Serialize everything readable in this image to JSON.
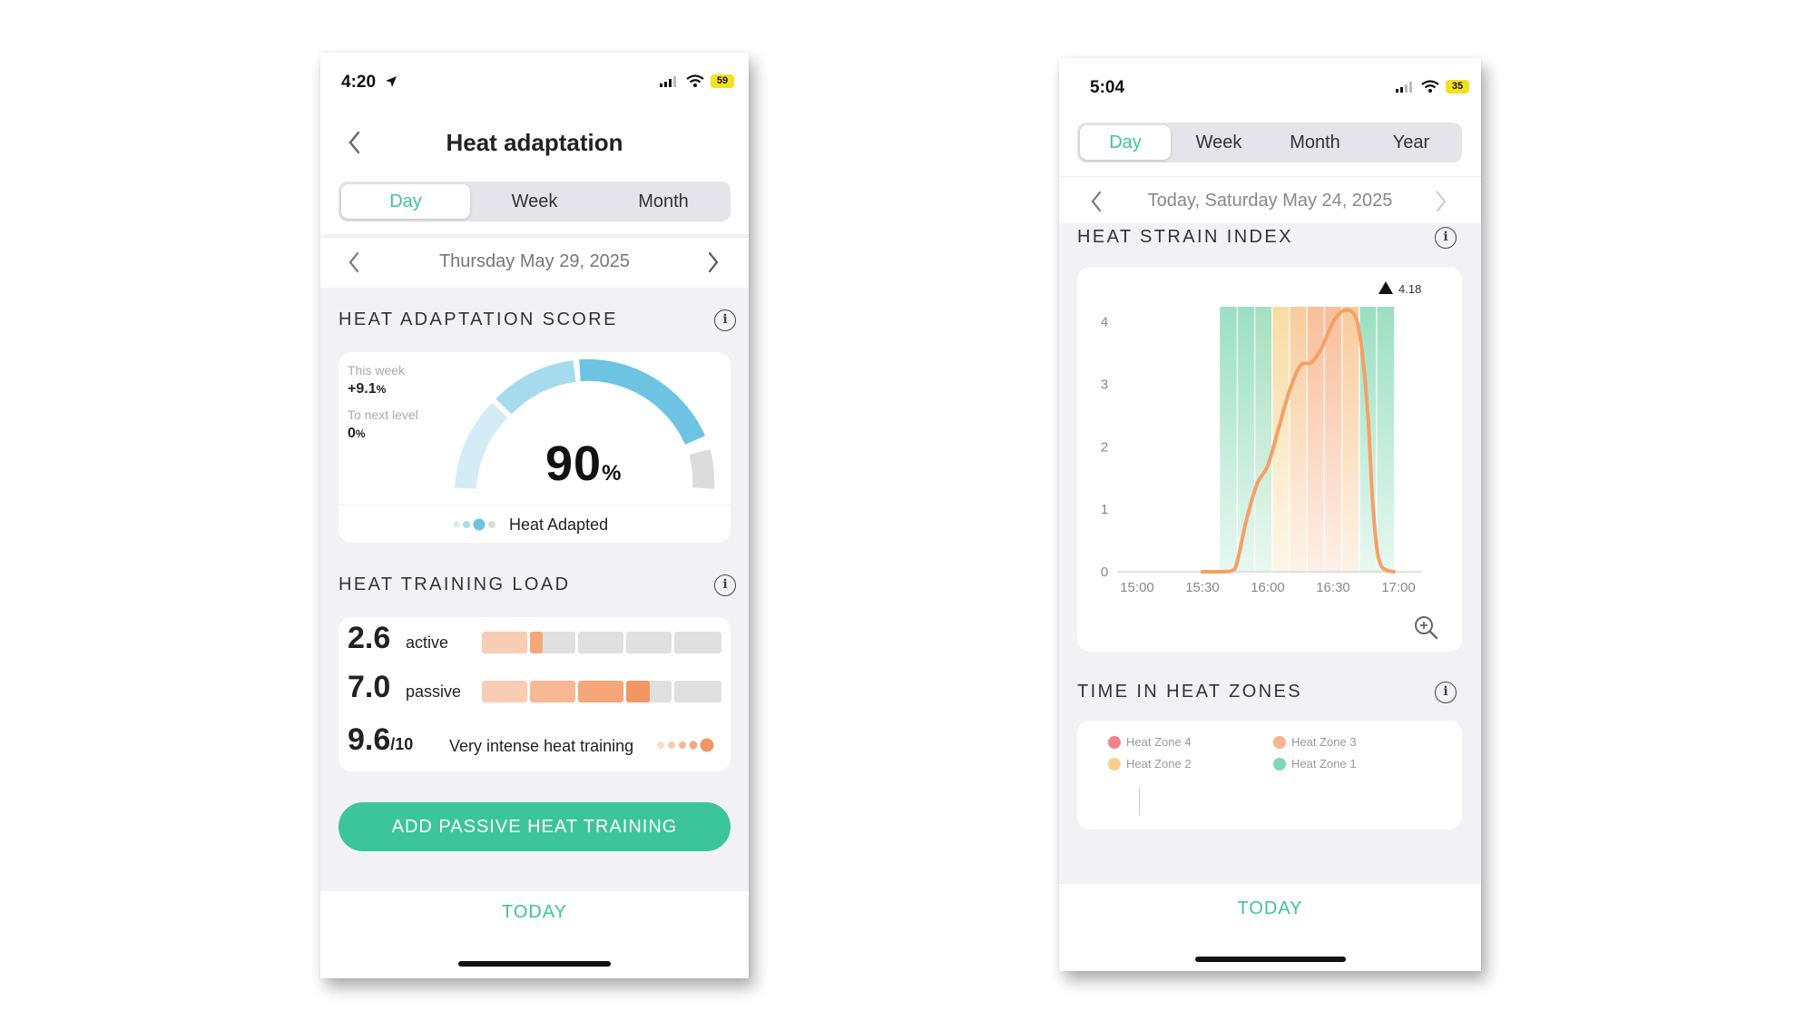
{
  "phone1": {
    "status": {
      "time": "4:20",
      "battery": "59"
    },
    "header": {
      "title": "Heat adaptation"
    },
    "tabs": [
      {
        "label": "Day"
      },
      {
        "label": "Week"
      },
      {
        "label": "Month"
      }
    ],
    "date": "Thursday May 29, 2025",
    "adaptation": {
      "title": "HEAT ADAPTATION SCORE",
      "this_week_label": "This week",
      "this_week_value": "+9.1",
      "this_week_unit": "%",
      "next_level_label": "To next level",
      "next_level_value": "0",
      "next_level_unit": "%",
      "score": "90",
      "score_unit": "%",
      "score_fraction": 0.9,
      "status": "Heat Adapted"
    },
    "training": {
      "title": "HEAT TRAINING LOAD",
      "active_value": "2.6",
      "active_label": "active",
      "passive_value": "7.0",
      "passive_label": "passive",
      "total_value": "9.6",
      "total_unit": "/10",
      "total_label": "Very intense heat training"
    },
    "cta": "ADD PASSIVE HEAT TRAINING",
    "footer": "TODAY",
    "colors": {
      "accent": "#3cc59a",
      "gauge": "#6cc4e2",
      "load": "#f5a77a"
    }
  },
  "phone2": {
    "status": {
      "time": "5:04",
      "battery": "35"
    },
    "tabs": [
      {
        "label": "Day"
      },
      {
        "label": "Week"
      },
      {
        "label": "Month"
      },
      {
        "label": "Year"
      }
    ],
    "date": "Today, Saturday May 24, 2025",
    "strain": {
      "title": "HEAT STRAIN INDEX",
      "peak_label": "4.18"
    },
    "zones": {
      "title": "TIME IN HEAT ZONES",
      "legend": [
        {
          "label": "Heat Zone 4",
          "color": "#f4828c"
        },
        {
          "label": "Heat Zone 3",
          "color": "#f8b48e"
        },
        {
          "label": "Heat Zone 2",
          "color": "#f7d08e"
        },
        {
          "label": "Heat Zone 1",
          "color": "#7ed9b3"
        }
      ]
    },
    "footer": "TODAY"
  },
  "chart_data": {
    "type": "line",
    "title": "HEAT STRAIN INDEX",
    "xlabel": "",
    "ylabel": "",
    "x_ticks": [
      "15:00",
      "15:30",
      "16:00",
      "16:30",
      "17:00"
    ],
    "y_ticks": [
      "0",
      "1",
      "2",
      "3",
      "4"
    ],
    "ylim": [
      0,
      4.3
    ],
    "xlim_minutes": [
      0,
      130
    ],
    "series": [
      {
        "x_minutes": [
          30,
          40,
          45,
          50,
          55,
          60,
          65,
          70,
          75,
          80,
          85,
          90,
          95,
          100,
          103,
          106,
          108,
          110,
          112,
          115,
          118
        ],
        "values": [
          0,
          0,
          0.05,
          0.8,
          1.4,
          1.7,
          2.3,
          2.9,
          3.3,
          3.35,
          3.6,
          4.0,
          4.18,
          4.1,
          3.6,
          2.5,
          1.2,
          0.4,
          0.1,
          0.02,
          0
        ]
      }
    ],
    "peak": 4.18,
    "shaded_range_minutes": [
      38,
      118
    ],
    "grid": false
  }
}
